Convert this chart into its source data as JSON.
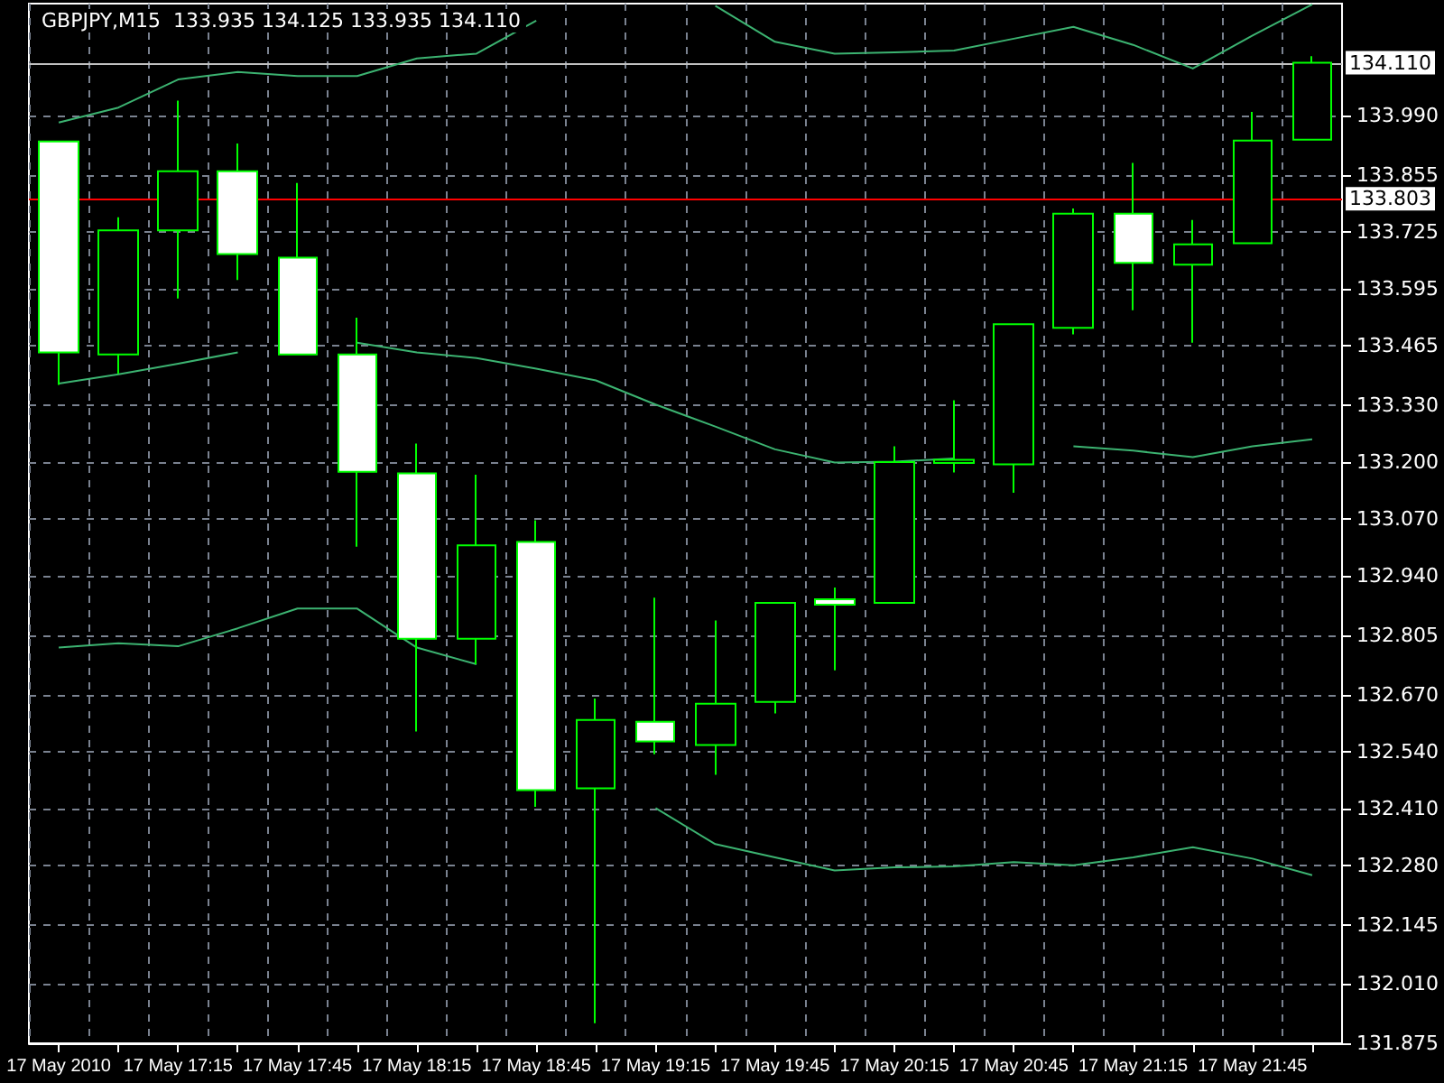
{
  "chart_data": {
    "type": "candlestick",
    "title": "GBPJPY,M15  133.935 134.125 133.935 134.110",
    "categories": [
      "17 May 2010",
      null,
      "17 May 17:15",
      null,
      "17 May 17:45",
      null,
      "17 May 18:15",
      null,
      "17 May 18:45",
      null,
      "17 May 19:15",
      null,
      "17 May 19:45",
      null,
      "17 May 20:15",
      null,
      "17 May 20:45",
      null,
      "17 May 21:15",
      null,
      "17 May 21:45",
      null
    ],
    "series": [
      {
        "color": "#00ff00",
        "ohlc": [
          [
            133.931,
            133.931,
            133.376,
            133.45
          ],
          [
            133.445,
            133.758,
            133.401,
            133.728
          ],
          [
            133.728,
            134.024,
            133.573,
            133.863
          ],
          [
            133.863,
            133.926,
            133.615,
            133.674
          ],
          [
            133.666,
            133.836,
            133.445,
            133.445
          ],
          [
            133.445,
            133.529,
            133.007,
            133.178
          ],
          [
            133.174,
            133.242,
            132.586,
            132.797
          ],
          [
            132.797,
            133.171,
            132.739,
            133.01
          ],
          [
            133.018,
            133.067,
            132.414,
            132.452
          ],
          [
            132.456,
            132.661,
            131.921,
            132.612
          ],
          [
            132.608,
            132.891,
            132.534,
            132.563
          ],
          [
            132.555,
            132.839,
            132.487,
            132.649
          ],
          [
            132.653,
            132.879,
            132.627,
            132.879
          ],
          [
            132.887,
            132.914,
            132.725,
            132.875
          ],
          [
            132.879,
            133.236,
            132.879,
            133.2
          ],
          [
            133.198,
            133.341,
            133.176,
            133.205
          ],
          [
            133.195,
            133.514,
            133.13,
            133.514
          ],
          [
            133.506,
            133.778,
            133.491,
            133.766
          ],
          [
            133.766,
            133.882,
            133.546,
            133.654
          ],
          [
            133.65,
            133.752,
            133.472,
            133.696
          ],
          [
            133.699,
            133.998,
            133.699,
            133.933
          ],
          [
            133.935,
            134.125,
            133.935,
            134.11
          ]
        ]
      },
      {
        "type": "line",
        "color": "#3cb371",
        "values": [
          133.974,
          134.008,
          134.072,
          134.089,
          134.08,
          134.08,
          134.12,
          134.131,
          134.206,
          null,
          null,
          134.24,
          134.158,
          134.131,
          134.134,
          134.138,
          134.165,
          134.192,
          134.151,
          134.097,
          134.172,
          134.243
        ]
      },
      {
        "type": "line",
        "color": "#3cb371",
        "values": [
          133.379,
          133.4,
          133.424,
          133.45,
          null,
          133.472,
          133.45,
          133.437,
          133.413,
          133.386,
          133.331,
          133.281,
          133.229,
          133.199,
          133.201,
          133.208,
          null,
          133.236,
          133.226,
          133.211,
          133.236,
          133.252
        ]
      },
      {
        "type": "line",
        "color": "#3cb371",
        "values": [
          132.777,
          132.787,
          132.78,
          132.821,
          132.866,
          132.866,
          132.777,
          132.739,
          null,
          null,
          132.411,
          132.329,
          132.299,
          132.269,
          132.276,
          132.278,
          132.288,
          132.281,
          132.299,
          132.322,
          132.296,
          132.258
        ]
      }
    ],
    "ylim": [
      131.875,
      134.245
    ],
    "yticks": [
      {
        "value": 131.875,
        "label": "131.875"
      },
      {
        "value": 132.01,
        "label": "132.010"
      },
      {
        "value": 132.145,
        "label": "132.145"
      },
      {
        "value": 132.28,
        "label": "132.280"
      },
      {
        "value": 132.41,
        "label": "132.410"
      },
      {
        "value": 132.54,
        "label": "132.540"
      },
      {
        "value": 132.67,
        "label": "132.670"
      },
      {
        "value": 132.805,
        "label": "132.805"
      },
      {
        "value": 132.94,
        "label": "132.940"
      },
      {
        "value": 133.07,
        "label": "133.070"
      },
      {
        "value": 133.2,
        "label": "133.200"
      },
      {
        "value": 133.33,
        "label": "133.330"
      },
      {
        "value": 133.465,
        "label": "133.465"
      },
      {
        "value": 133.595,
        "label": "133.595"
      },
      {
        "value": 133.725,
        "label": "133.725"
      },
      {
        "value": 133.855,
        "label": "133.855"
      },
      {
        "value": 133.99,
        "label": "133.990"
      }
    ],
    "ref_lines": [
      {
        "axis": "y",
        "value": 134.11,
        "label": "134.110",
        "color": "#c0c0c0"
      },
      {
        "axis": "y",
        "value": 133.803,
        "label": "133.803",
        "color": "#ff0000"
      }
    ],
    "grid": true,
    "marker": "none"
  }
}
